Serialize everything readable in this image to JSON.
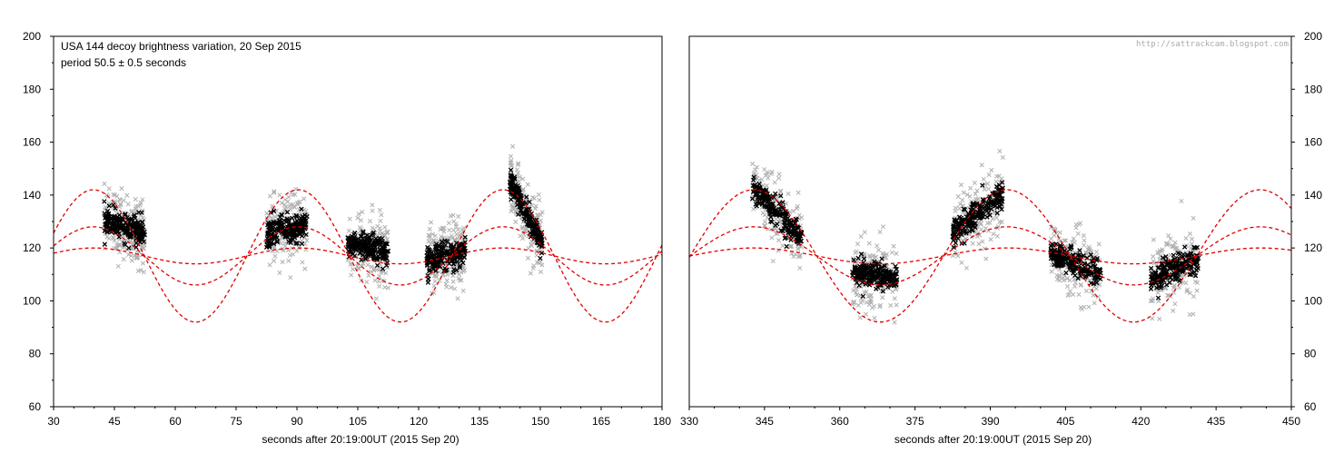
{
  "chart_data": [
    {
      "type": "scatter",
      "title": "USA 144 decoy brightness variation,  20 Sep 2015",
      "subtitle": "period 50.5  ±  0.5 seconds",
      "xlabel": "seconds after 20:19:00UT  (2015 Sep 20)",
      "ylabel": "",
      "xlim": [
        30,
        180
      ],
      "ylim": [
        60,
        200
      ],
      "xticks": [
        30,
        45,
        60,
        75,
        90,
        105,
        120,
        135,
        150,
        165,
        180
      ],
      "yticks": [
        60,
        80,
        100,
        120,
        140,
        160,
        180,
        200
      ],
      "ytick_side": "left",
      "grid": false,
      "observed_segments": [
        {
          "x_start": 42.5,
          "x_end": 52.5,
          "y_center": 128,
          "y_trend": -5
        },
        {
          "x_start": 82.5,
          "x_end": 92.5,
          "y_center": 127,
          "y_trend": 4
        },
        {
          "x_start": 102.5,
          "x_end": 112.5,
          "y_center": 120,
          "y_trend": -3
        },
        {
          "x_start": 122,
          "x_end": 131.5,
          "y_center": 117,
          "y_trend": 3
        },
        {
          "x_start": 142.5,
          "x_end": 150.5,
          "y_center": 133,
          "y_trend": -25
        }
      ],
      "model_curves": [
        {
          "mean": 117,
          "amplitude": 25,
          "period": 50.5,
          "peak_x": 39.8,
          "color": "#e00000"
        },
        {
          "mean": 117,
          "amplitude": 11,
          "period": 50.5,
          "peak_x": 39.8,
          "color": "#e00000"
        },
        {
          "mean": 117,
          "amplitude": 3,
          "period": 50.5,
          "peak_x": 39.8,
          "color": "#e00000"
        }
      ],
      "series_colors": {
        "measured": "#000000",
        "measured_spread": "#b0b0b0",
        "model": "#e00000"
      }
    },
    {
      "type": "scatter",
      "title": "",
      "xlabel": "seconds after 20:19:00UT  (2015 Sep 20)",
      "ylabel": "",
      "xlim": [
        330,
        450
      ],
      "ylim": [
        60,
        200
      ],
      "xticks": [
        330,
        345,
        360,
        375,
        390,
        405,
        420,
        435,
        450
      ],
      "yticks": [
        60,
        80,
        100,
        120,
        140,
        160,
        180,
        200
      ],
      "ytick_side": "right",
      "grid": false,
      "watermark": "http://sattrackcam.blogspot.com",
      "observed_segments": [
        {
          "x_start": 342.5,
          "x_end": 352.5,
          "y_center": 133,
          "y_trend": -20
        },
        {
          "x_start": 362.5,
          "x_end": 371.5,
          "y_center": 110,
          "y_trend": -2
        },
        {
          "x_start": 382.5,
          "x_end": 392.5,
          "y_center": 133,
          "y_trend": 15
        },
        {
          "x_start": 402,
          "x_end": 412,
          "y_center": 114,
          "y_trend": -8
        },
        {
          "x_start": 422,
          "x_end": 431.5,
          "y_center": 112,
          "y_trend": 8
        }
      ],
      "model_curves": [
        {
          "mean": 117,
          "amplitude": 25,
          "period": 50.5,
          "peak_x": 342.8,
          "color": "#e00000"
        },
        {
          "mean": 117,
          "amplitude": 11,
          "period": 50.5,
          "peak_x": 342.8,
          "color": "#e00000"
        },
        {
          "mean": 117,
          "amplitude": 3,
          "period": 50.5,
          "peak_x": 342.8,
          "color": "#e00000"
        }
      ],
      "series_colors": {
        "measured": "#000000",
        "measured_spread": "#b0b0b0",
        "model": "#e00000"
      }
    }
  ]
}
